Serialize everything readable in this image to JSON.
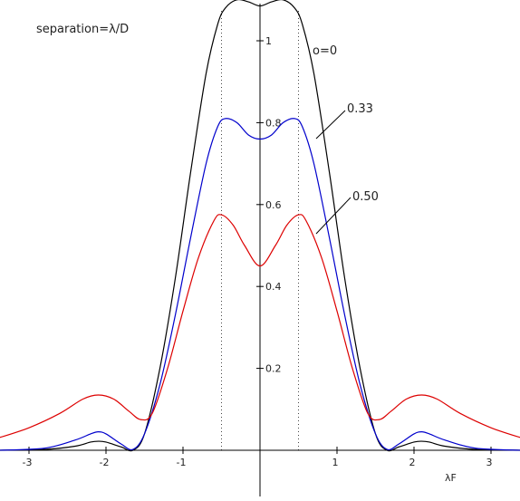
{
  "chart_data": {
    "type": "line",
    "title": "separation=λ/D",
    "xlabel": "λF",
    "ylabel": "",
    "xlim": [
      -3.4,
      3.4
    ],
    "ylim": [
      0,
      1.1
    ],
    "grid": false,
    "legend": "none",
    "x_ticks": [
      -3,
      -2,
      -1,
      1,
      2,
      3
    ],
    "x_tick_labels": [
      "-3",
      "-2",
      "-1",
      "1",
      "2",
      "3"
    ],
    "y_ticks": [
      0.2,
      0.4,
      0.6,
      0.8,
      1
    ],
    "y_tick_labels": [
      "0.2",
      "0.4",
      "0.6",
      "0.8",
      "1"
    ],
    "reference_lines_x": [
      -0.5,
      0.5
    ],
    "series": [
      {
        "label": "ο=0",
        "color": "#000000",
        "x": [
          -3.4,
          -2.8,
          -2.4,
          -2.2,
          -2.1,
          -2.0,
          -1.8,
          -1.65,
          -1.5,
          -1.3,
          -1.1,
          -0.9,
          -0.7,
          -0.55,
          -0.45,
          -0.3,
          -0.15,
          0,
          0.15,
          0.3,
          0.45,
          0.55,
          0.7,
          0.9,
          1.1,
          1.3,
          1.5,
          1.65,
          1.8,
          2.0,
          2.1,
          2.2,
          2.4,
          2.8,
          3.4
        ],
        "y": [
          0.0,
          0.002,
          0.01,
          0.02,
          0.022,
          0.02,
          0.008,
          0.0,
          0.04,
          0.2,
          0.42,
          0.68,
          0.92,
          1.04,
          1.08,
          1.1,
          1.095,
          1.085,
          1.095,
          1.1,
          1.08,
          1.04,
          0.92,
          0.68,
          0.42,
          0.2,
          0.04,
          0.0,
          0.008,
          0.02,
          0.022,
          0.02,
          0.01,
          0.002,
          0.0
        ]
      },
      {
        "label": "0.33",
        "color": "#0000cc",
        "x": [
          -3.4,
          -2.8,
          -2.4,
          -2.2,
          -2.1,
          -2.0,
          -1.8,
          -1.65,
          -1.5,
          -1.3,
          -1.1,
          -0.9,
          -0.7,
          -0.55,
          -0.45,
          -0.3,
          -0.15,
          0,
          0.15,
          0.3,
          0.45,
          0.55,
          0.7,
          0.9,
          1.1,
          1.3,
          1.5,
          1.65,
          1.8,
          2.0,
          2.1,
          2.2,
          2.4,
          2.8,
          3.4
        ],
        "y": [
          0.0,
          0.005,
          0.025,
          0.04,
          0.045,
          0.04,
          0.015,
          0.002,
          0.04,
          0.16,
          0.33,
          0.52,
          0.7,
          0.79,
          0.81,
          0.8,
          0.77,
          0.76,
          0.77,
          0.8,
          0.81,
          0.79,
          0.7,
          0.52,
          0.33,
          0.16,
          0.04,
          0.002,
          0.015,
          0.04,
          0.045,
          0.04,
          0.025,
          0.005,
          0.0
        ]
      },
      {
        "label": "0.50",
        "color": "#dd0000",
        "x": [
          -3.4,
          -3.0,
          -2.6,
          -2.3,
          -2.1,
          -1.9,
          -1.7,
          -1.55,
          -1.4,
          -1.2,
          -1.0,
          -0.8,
          -0.6,
          -0.5,
          -0.35,
          -0.2,
          0,
          0.2,
          0.35,
          0.5,
          0.6,
          0.8,
          1.0,
          1.2,
          1.4,
          1.55,
          1.7,
          1.9,
          2.1,
          2.3,
          2.6,
          3.0,
          3.4
        ],
        "y": [
          0.03,
          0.055,
          0.09,
          0.125,
          0.135,
          0.125,
          0.095,
          0.075,
          0.09,
          0.2,
          0.34,
          0.47,
          0.56,
          0.575,
          0.55,
          0.5,
          0.45,
          0.5,
          0.55,
          0.575,
          0.56,
          0.47,
          0.34,
          0.2,
          0.09,
          0.075,
          0.095,
          0.125,
          0.135,
          0.125,
          0.09,
          0.055,
          0.03
        ]
      }
    ]
  }
}
